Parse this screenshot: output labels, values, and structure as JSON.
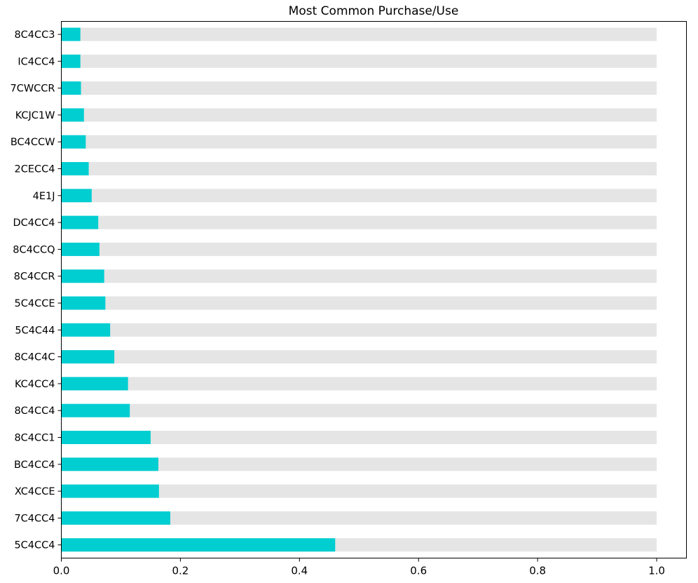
{
  "chart_data": {
    "type": "bar",
    "orientation": "horizontal",
    "title": "Most Common Purchase/Use",
    "xlabel": "",
    "ylabel": "",
    "xlim": [
      0,
      1.05
    ],
    "xticks": [
      "0.0",
      "0.2",
      "0.4",
      "0.6",
      "0.8",
      "1.0"
    ],
    "grid": false,
    "categories": [
      "8C4CC3",
      "IC4CC4",
      "7CWCCR",
      "KCJC1W",
      "BC4CCW",
      "2CECC4",
      "4E1J",
      "DC4CC4",
      "8C4CCQ",
      "8C4CCR",
      "5C4CCE",
      "5C4C44",
      "8C4C4C",
      "KC4CC4",
      "8C4CC4",
      "8C4CC1",
      "BC4CC4",
      "XC4CCE",
      "7C4CC4",
      "5C4CC4"
    ],
    "series": [
      {
        "role": "background",
        "color": "#e5e5e5",
        "values": [
          1,
          1,
          1,
          1,
          1,
          1,
          1,
          1,
          1,
          1,
          1,
          1,
          1,
          1,
          1,
          1,
          1,
          1,
          1,
          1
        ]
      },
      {
        "role": "foreground",
        "color": "#00ced1",
        "values": [
          0.032,
          0.032,
          0.033,
          0.038,
          0.041,
          0.046,
          0.051,
          0.062,
          0.064,
          0.072,
          0.074,
          0.082,
          0.089,
          0.112,
          0.115,
          0.15,
          0.163,
          0.164,
          0.183,
          0.46
        ]
      }
    ]
  }
}
